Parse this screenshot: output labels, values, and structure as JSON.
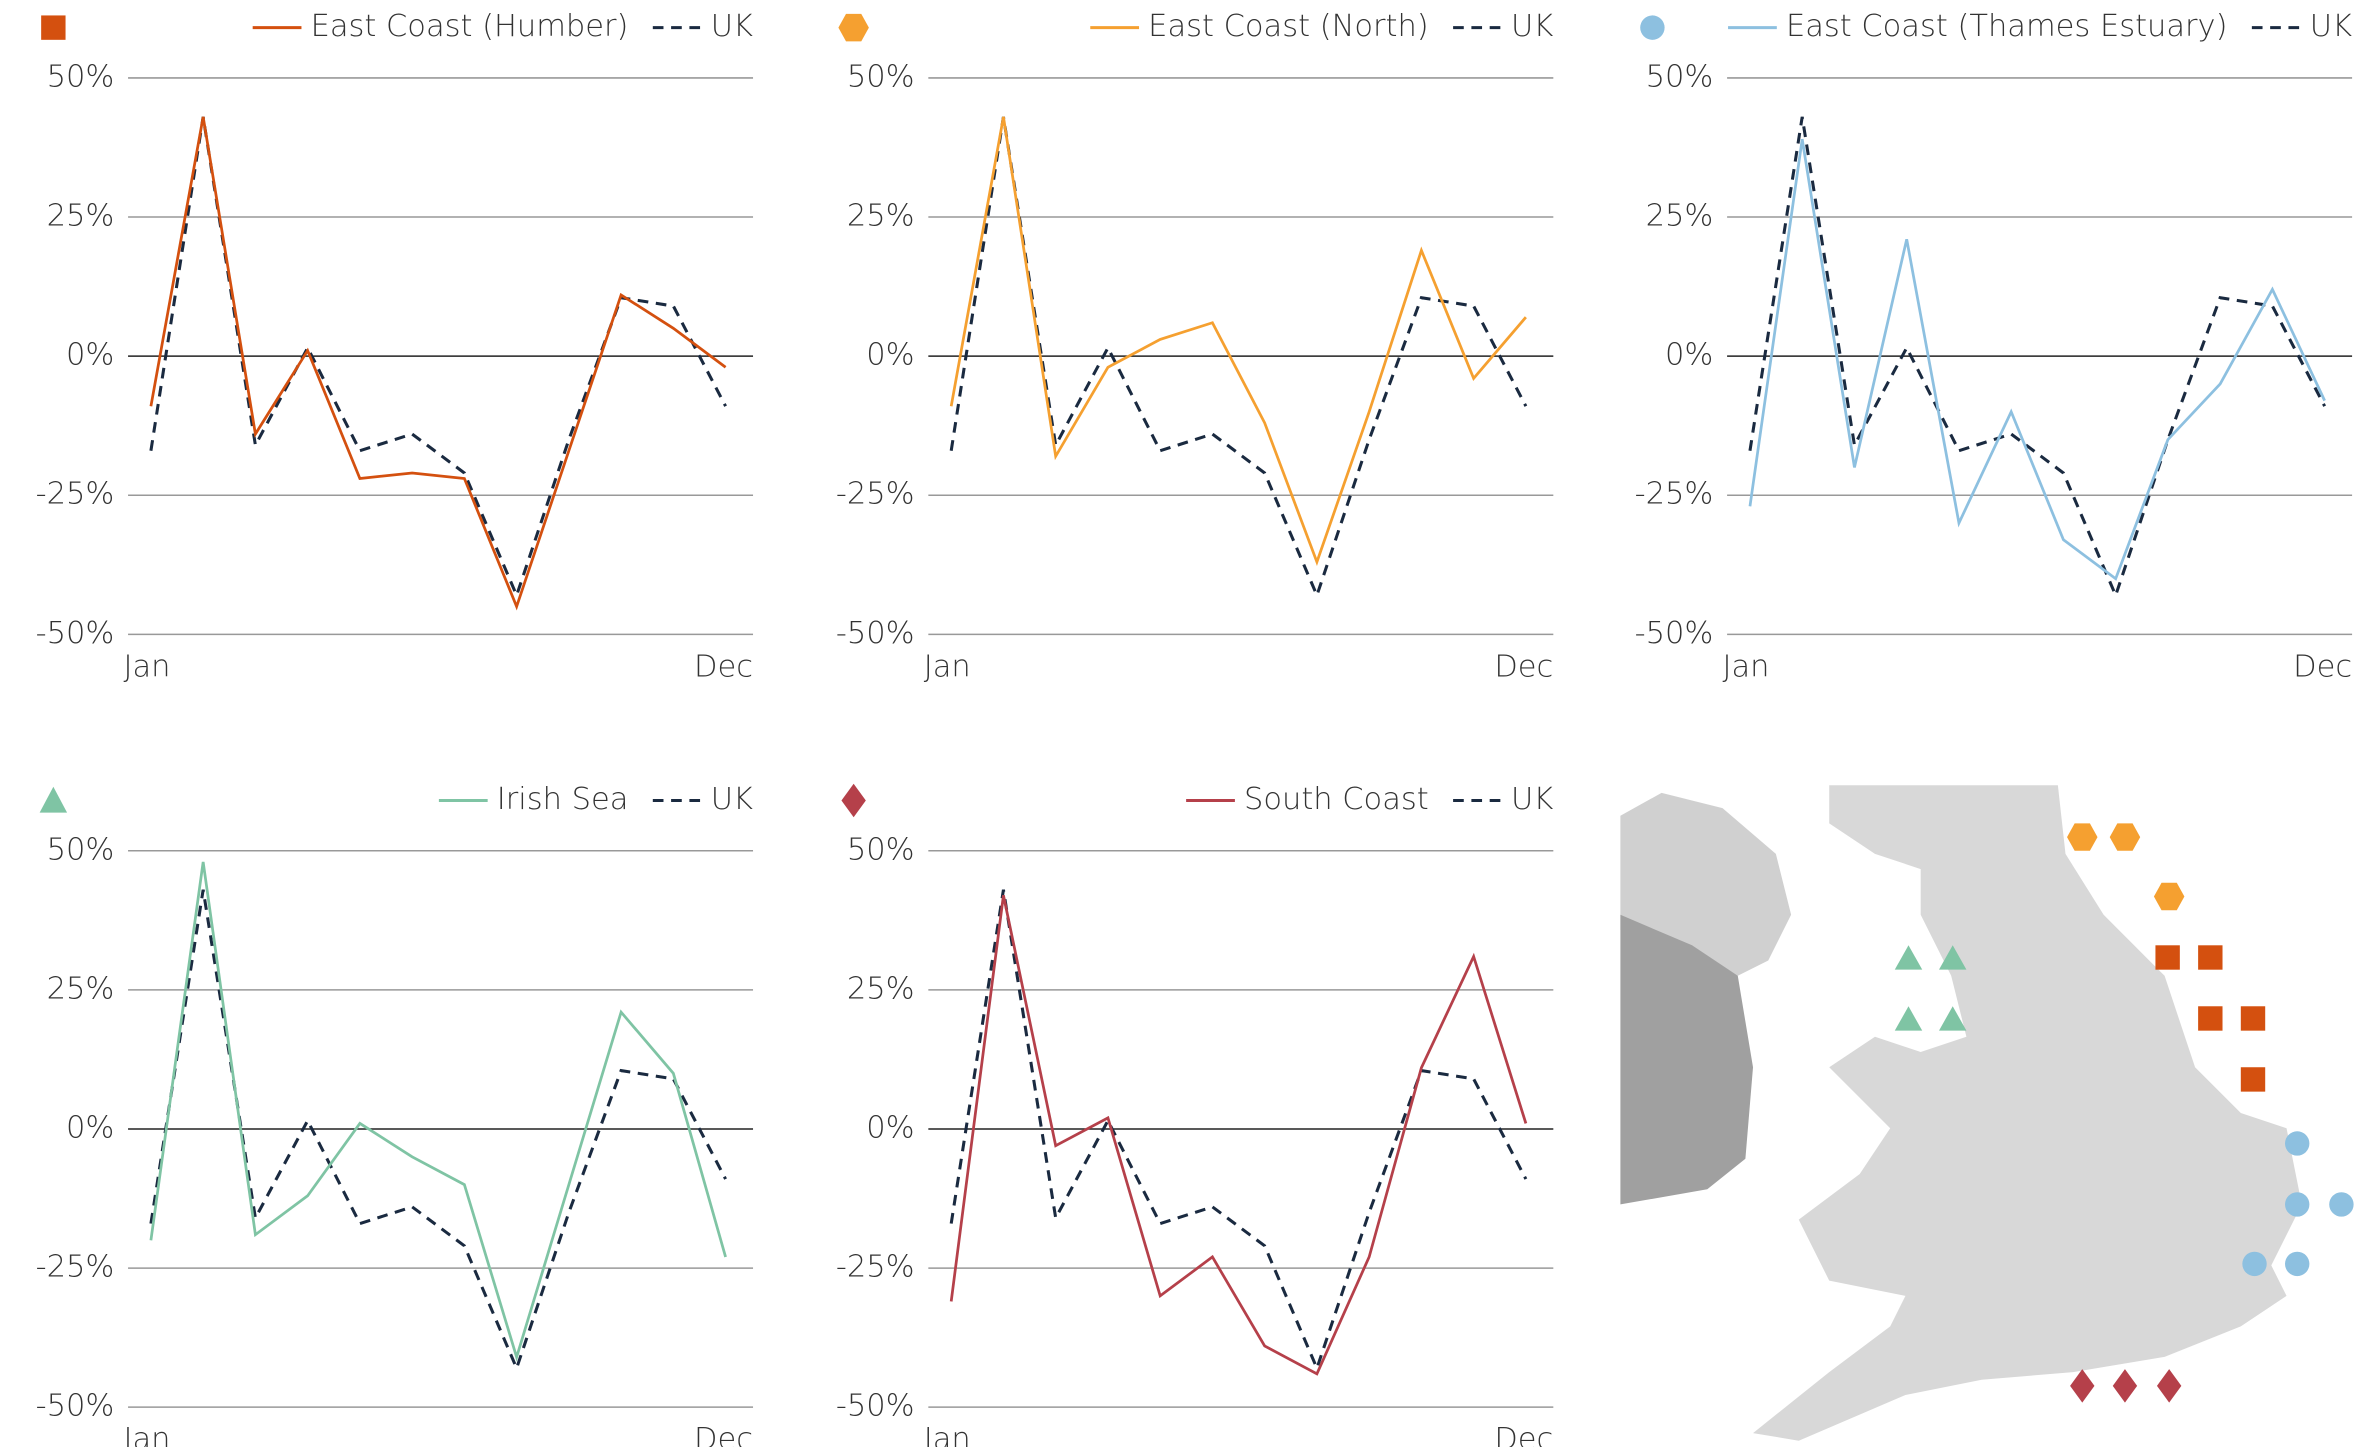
{
  "chart_data": [
    {
      "type": "line",
      "marker": "square",
      "categories": [
        "Jan",
        null,
        null,
        null,
        null,
        null,
        null,
        null,
        null,
        null,
        null,
        "Dec"
      ],
      "ylim": [
        -50,
        50
      ],
      "yticks": [
        {
          "value": -50,
          "label": "-50%"
        },
        {
          "value": -25,
          "label": "-25%"
        },
        {
          "value": 0,
          "label": "0%"
        },
        {
          "value": 25,
          "label": "25%"
        },
        {
          "value": 50,
          "label": "50%"
        }
      ],
      "series": [
        {
          "name": "East Coast (Humber)",
          "color": "#d4500f",
          "values": [
            -9,
            43,
            -14,
            1,
            -22,
            -21,
            -22,
            -45,
            -17,
            11,
            5,
            -2
          ]
        },
        {
          "name": "UK",
          "color": "#1a2a40",
          "dashed": true,
          "values": [
            -17,
            43,
            -16,
            1.5,
            -17,
            -14,
            -21,
            -43,
            -15,
            10.5,
            9,
            -9
          ]
        }
      ]
    },
    {
      "type": "line",
      "marker": "hexagon",
      "categories": [
        "Jan",
        null,
        null,
        null,
        null,
        null,
        null,
        null,
        null,
        null,
        null,
        "Dec"
      ],
      "ylim": [
        -50,
        50
      ],
      "yticks": [
        {
          "value": -50,
          "label": "-50%"
        },
        {
          "value": -25,
          "label": "-25%"
        },
        {
          "value": 0,
          "label": "0%"
        },
        {
          "value": 25,
          "label": "25%"
        },
        {
          "value": 50,
          "label": "50%"
        }
      ],
      "series": [
        {
          "name": "East Coast (North)",
          "color": "#f5a030",
          "values": [
            -9,
            43,
            -18,
            -2,
            3,
            6,
            -12,
            -37,
            -10,
            19,
            -4,
            7
          ]
        },
        {
          "name": "UK",
          "color": "#1a2a40",
          "dashed": true,
          "values": [
            -17,
            43,
            -16,
            1.5,
            -17,
            -14,
            -21,
            -43,
            -15,
            10.5,
            9,
            -9
          ]
        }
      ]
    },
    {
      "type": "line",
      "marker": "circle",
      "categories": [
        "Jan",
        null,
        null,
        null,
        null,
        null,
        null,
        null,
        null,
        null,
        null,
        "Dec"
      ],
      "ylim": [
        -50,
        50
      ],
      "yticks": [
        {
          "value": -50,
          "label": "-50%"
        },
        {
          "value": -25,
          "label": "-25%"
        },
        {
          "value": 0,
          "label": "0%"
        },
        {
          "value": 25,
          "label": "25%"
        },
        {
          "value": 50,
          "label": "50%"
        }
      ],
      "series": [
        {
          "name": "East Coast (Thames Estuary)",
          "color": "#8dc0e0",
          "values": [
            -27,
            39,
            -20,
            21,
            -30,
            -10,
            -33,
            -40,
            -15,
            -5,
            12,
            -8
          ]
        },
        {
          "name": "UK",
          "color": "#1a2a40",
          "dashed": true,
          "values": [
            -17,
            43,
            -16,
            1.5,
            -17,
            -14,
            -21,
            -43,
            -15,
            10.5,
            9,
            -9
          ]
        }
      ]
    },
    {
      "type": "line",
      "marker": "triangle",
      "categories": [
        "Jan",
        null,
        null,
        null,
        null,
        null,
        null,
        null,
        null,
        null,
        null,
        "Dec"
      ],
      "ylim": [
        -50,
        50
      ],
      "yticks": [
        {
          "value": -50,
          "label": "-50%"
        },
        {
          "value": -25,
          "label": "-25%"
        },
        {
          "value": 0,
          "label": "0%"
        },
        {
          "value": 25,
          "label": "25%"
        },
        {
          "value": 50,
          "label": "50%"
        }
      ],
      "series": [
        {
          "name": "Irish Sea",
          "color": "#7fc4a4",
          "values": [
            -20,
            48,
            -19,
            -12,
            1,
            -5,
            -10,
            -41,
            -10,
            21,
            10,
            -23
          ]
        },
        {
          "name": "UK",
          "color": "#1a2a40",
          "dashed": true,
          "values": [
            -17,
            43,
            -16,
            1.5,
            -17,
            -14,
            -21,
            -43,
            -15,
            10.5,
            9,
            -9
          ]
        }
      ]
    },
    {
      "type": "line",
      "marker": "diamond",
      "categories": [
        "Jan",
        null,
        null,
        null,
        null,
        null,
        null,
        null,
        null,
        null,
        null,
        "Dec"
      ],
      "ylim": [
        -50,
        50
      ],
      "yticks": [
        {
          "value": -50,
          "label": "-50%"
        },
        {
          "value": -25,
          "label": "-25%"
        },
        {
          "value": 0,
          "label": "0%"
        },
        {
          "value": 25,
          "label": "25%"
        },
        {
          "value": 50,
          "label": "50%"
        }
      ],
      "series": [
        {
          "name": "South Coast",
          "color": "#b5404a",
          "values": [
            -31,
            42,
            -3,
            2,
            -30,
            -23,
            -39,
            -44,
            -23,
            11,
            31,
            1
          ]
        },
        {
          "name": "UK",
          "color": "#1a2a40",
          "dashed": true,
          "values": [
            -17,
            43,
            -16,
            1.5,
            -17,
            -14,
            -21,
            -43,
            -15,
            10.5,
            9,
            -9
          ]
        }
      ]
    }
  ]
}
